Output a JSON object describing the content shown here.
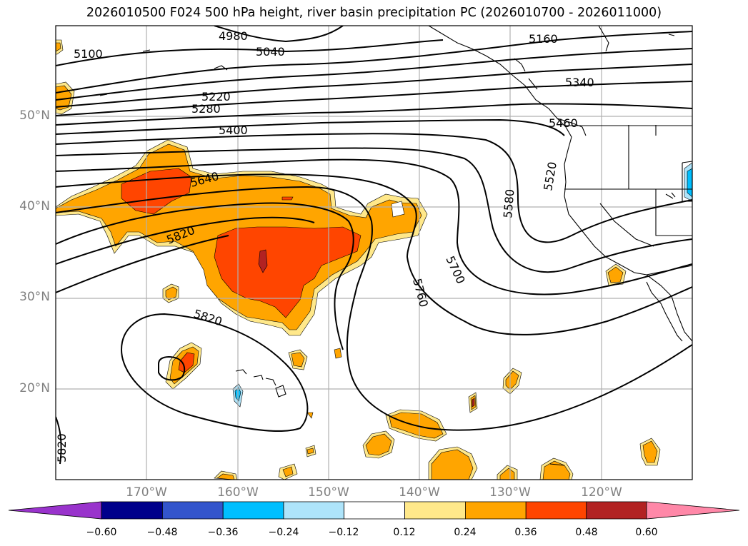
{
  "title": "2026010500 F024 500 hPa height, river basin precipitation PC (2026010700 - 2026011000)",
  "map": {
    "projection": "equirectangular",
    "lon_range": [
      -180,
      -110
    ],
    "lat_range": [
      10,
      60
    ],
    "lat_labels": [
      "50°N",
      "40°N",
      "30°N",
      "20°N"
    ],
    "lon_labels": [
      "170°W",
      "160°W",
      "150°W",
      "140°W",
      "130°W",
      "120°W"
    ],
    "gridlines": true,
    "contour_color": "#000000",
    "contour_labels": [
      "4980",
      "5040",
      "5100",
      "5160",
      "5220",
      "5280",
      "5340",
      "5400",
      "5460",
      "5520",
      "5580",
      "5640",
      "5700",
      "5760",
      "5820",
      "5820",
      "5820"
    ]
  },
  "colorbar": {
    "ticks": [
      "−0.60",
      "−0.48",
      "−0.36",
      "−0.24",
      "−0.12",
      "0.12",
      "0.24",
      "0.36",
      "0.48",
      "0.60"
    ],
    "colors": [
      "#9933cc",
      "#00008b",
      "#3355cc",
      "#00bfff",
      "#aee4fa",
      "#ffffff",
      "#ffe88a",
      "#ffa500",
      "#ff4500",
      "#b22222",
      "#ff88a8"
    ],
    "extend": "both"
  }
}
